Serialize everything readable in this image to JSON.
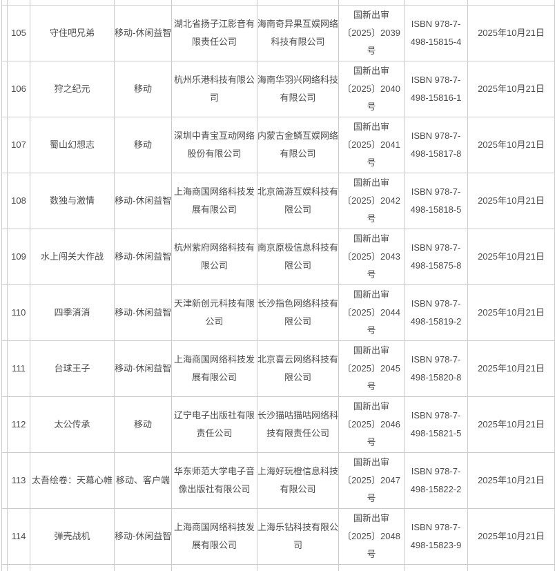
{
  "colors": {
    "table_border": "#cbcbcb",
    "table_text": "#4c4c4c",
    "background": "#ffffff"
  },
  "table": {
    "rows": [
      {
        "seq": "105",
        "game_name": "守住吧兄弟",
        "category": "移动-休闲益智",
        "publisher": "湖北省扬子江影音有限责任公司",
        "operator": "海南奇异果互娱网络科技有限公司",
        "approval_no": "国新出审〔2025〕2039号",
        "isbn": "ISBN 978-7-498-15815-4",
        "date": "2025年10月21日"
      },
      {
        "seq": "106",
        "game_name": "狩之纪元",
        "category": "移动",
        "publisher": "杭州乐港科技有限公司",
        "operator": "海南华羽兴网络科技有限公司",
        "approval_no": "国新出审〔2025〕2040号",
        "isbn": "ISBN 978-7-498-15816-1",
        "date": "2025年10月21日"
      },
      {
        "seq": "107",
        "game_name": "蜀山幻想志",
        "category": "移动",
        "publisher": "深圳中青宝互动网络股份有限公司",
        "operator": "内蒙古金鳞互娱网络有限公司",
        "approval_no": "国新出审〔2025〕2041号",
        "isbn": "ISBN 978-7-498-15817-8",
        "date": "2025年10月21日"
      },
      {
        "seq": "108",
        "game_name": "数独与激情",
        "category": "移动-休闲益智",
        "publisher": "上海商国网络科技发展有限公司",
        "operator": "北京简游互娱科技有限公司",
        "approval_no": "国新出审〔2025〕2042号",
        "isbn": "ISBN 978-7-498-15818-5",
        "date": "2025年10月21日"
      },
      {
        "seq": "109",
        "game_name": "水上闯关大作战",
        "category": "移动-休闲益智",
        "publisher": "杭州紫府网络科技有限公司",
        "operator": "南京原极信息科技有限公司",
        "approval_no": "国新出审〔2025〕2043号",
        "isbn": "ISBN 978-7-498-15875-8",
        "date": "2025年10月21日"
      },
      {
        "seq": "110",
        "game_name": "四季消消",
        "category": "移动-休闲益智",
        "publisher": "天津新创元科技有限公司",
        "operator": "长沙指色网络科技有限公司",
        "approval_no": "国新出审〔2025〕2044号",
        "isbn": "ISBN 978-7-498-15819-2",
        "date": "2025年10月21日"
      },
      {
        "seq": "111",
        "game_name": "台球王子",
        "category": "移动-休闲益智",
        "publisher": "上海商国网络科技发展有限公司",
        "operator": "北京喜云网络科技有限公司",
        "approval_no": "国新出审〔2025〕2045号",
        "isbn": "ISBN 978-7-498-15820-8",
        "date": "2025年10月21日"
      },
      {
        "seq": "112",
        "game_name": "太公传承",
        "category": "移动",
        "publisher": "辽宁电子出版社有限责任公司",
        "operator": "长沙猫咕猫咕网络科技有限责任公司",
        "approval_no": "国新出审〔2025〕2046号",
        "isbn": "ISBN 978-7-498-15821-5",
        "date": "2025年10月21日"
      },
      {
        "seq": "113",
        "game_name": "太吾绘卷：天幕心帷",
        "category": "移动、客户端",
        "publisher": "华东师范大学电子音像出版社有限公司",
        "operator": "上海好玩橙信息科技有限公司",
        "approval_no": "国新出审〔2025〕2047号",
        "isbn": "ISBN 978-7-498-15822-2",
        "date": "2025年10月21日"
      },
      {
        "seq": "114",
        "game_name": "弹壳战机",
        "category": "移动-休闲益智",
        "publisher": "上海商国网络科技发展有限公司",
        "operator": "上海乐钻科技有限公司",
        "approval_no": "国新出审〔2025〕2048号",
        "isbn": "ISBN 978-7-498-15823-9",
        "date": "2025年10月21日"
      }
    ]
  }
}
